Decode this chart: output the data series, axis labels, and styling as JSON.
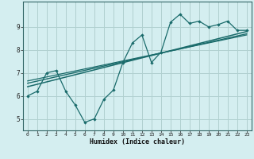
{
  "xlabel": "Humidex (Indice chaleur)",
  "bg_color": "#d4eef0",
  "grid_color": "#b0d0d0",
  "line_color": "#1a6b6b",
  "spine_color": "#336666",
  "xlim": [
    -0.5,
    23.5
  ],
  "ylim": [
    4.5,
    10.1
  ],
  "xticks": [
    0,
    1,
    2,
    3,
    4,
    5,
    6,
    7,
    8,
    9,
    10,
    11,
    12,
    13,
    14,
    15,
    16,
    17,
    18,
    19,
    20,
    21,
    22,
    23
  ],
  "yticks": [
    5,
    6,
    7,
    8,
    9
  ],
  "main_x": [
    0,
    1,
    2,
    3,
    4,
    5,
    6,
    7,
    8,
    9,
    10,
    11,
    12,
    13,
    14,
    15,
    16,
    17,
    18,
    19,
    20,
    21,
    22,
    23
  ],
  "main_y": [
    6.0,
    6.2,
    7.0,
    7.1,
    6.2,
    5.6,
    4.85,
    5.0,
    5.85,
    6.25,
    7.45,
    8.3,
    8.65,
    7.45,
    7.9,
    9.2,
    9.55,
    9.15,
    9.25,
    9.0,
    9.1,
    9.25,
    8.85,
    8.85
  ],
  "trend1_x": [
    0,
    23
  ],
  "trend1_y": [
    6.4,
    8.8
  ],
  "trend2_x": [
    0,
    23
  ],
  "trend2_y": [
    6.55,
    8.7
  ],
  "trend3_x": [
    0,
    23
  ],
  "trend3_y": [
    6.65,
    8.65
  ]
}
